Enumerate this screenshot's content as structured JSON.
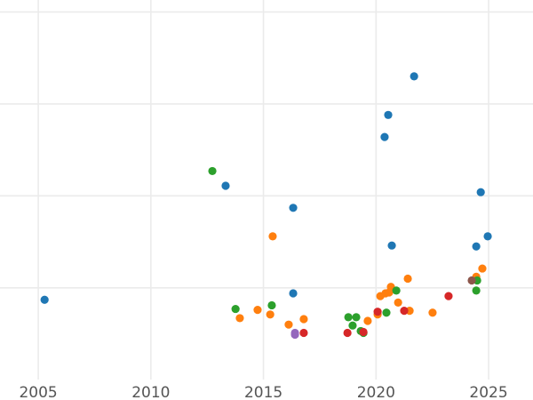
{
  "chart_data": {
    "type": "scatter",
    "title": "",
    "xlabel": "",
    "ylabel": "",
    "xlim": [
      2003.3,
      2026.97
    ],
    "ylim": [
      -0.22,
      4.13
    ],
    "x_ticks": [
      2005,
      2010,
      2015,
      2020,
      2025
    ],
    "x_tick_labels": [
      "2005",
      "2010",
      "2015",
      "2020",
      "2025"
    ],
    "y_gridlines": [
      1,
      2,
      3,
      4
    ],
    "grid": true,
    "series": [
      {
        "color": "#1f77b4",
        "points": [
          [
            2005.28,
            0.87
          ],
          [
            2013.32,
            2.11
          ],
          [
            2016.32,
            1.87
          ],
          [
            2016.32,
            0.94
          ],
          [
            2020.38,
            2.64
          ],
          [
            2020.54,
            2.88
          ],
          [
            2021.69,
            3.3
          ],
          [
            2020.7,
            1.46
          ],
          [
            2024.65,
            2.04
          ],
          [
            2024.96,
            1.56
          ],
          [
            2024.45,
            1.45
          ]
        ]
      },
      {
        "color": "#ff7f0e",
        "points": [
          [
            2013.95,
            0.67
          ],
          [
            2014.74,
            0.76
          ],
          [
            2015.3,
            0.71
          ],
          [
            2015.41,
            1.56
          ],
          [
            2016.12,
            0.6
          ],
          [
            2016.79,
            0.66
          ],
          [
            2019.63,
            0.64
          ],
          [
            2020.07,
            0.71
          ],
          [
            2020.19,
            0.91
          ],
          [
            2020.42,
            0.94
          ],
          [
            2020.66,
            1.01
          ],
          [
            2020.58,
            0.95
          ],
          [
            2020.98,
            0.84
          ],
          [
            2021.41,
            1.1
          ],
          [
            2021.49,
            0.75
          ],
          [
            2022.51,
            0.73
          ],
          [
            2024.45,
            1.12
          ],
          [
            2024.72,
            1.21
          ]
        ]
      },
      {
        "color": "#2ca02c",
        "points": [
          [
            2012.73,
            2.27
          ],
          [
            2013.76,
            0.77
          ],
          [
            2015.37,
            0.81
          ],
          [
            2018.77,
            0.68
          ],
          [
            2019.12,
            0.68
          ],
          [
            2018.96,
            0.59
          ],
          [
            2019.32,
            0.53
          ],
          [
            2019.44,
            0.51
          ],
          [
            2020.46,
            0.73
          ],
          [
            2020.9,
            0.97
          ],
          [
            2024.49,
            1.08
          ],
          [
            2024.45,
            0.97
          ]
        ]
      },
      {
        "color": "#d62728",
        "points": [
          [
            2016.79,
            0.51
          ],
          [
            2018.73,
            0.51
          ],
          [
            2019.44,
            0.52
          ],
          [
            2020.07,
            0.74
          ],
          [
            2021.25,
            0.75
          ],
          [
            2023.22,
            0.91
          ]
        ]
      },
      {
        "color": "#9467bd",
        "points": [
          [
            2016.4,
            0.51
          ],
          [
            2016.4,
            0.49
          ]
        ]
      },
      {
        "color": "#8c564b",
        "points": [
          [
            2024.25,
            1.08
          ]
        ]
      }
    ]
  }
}
